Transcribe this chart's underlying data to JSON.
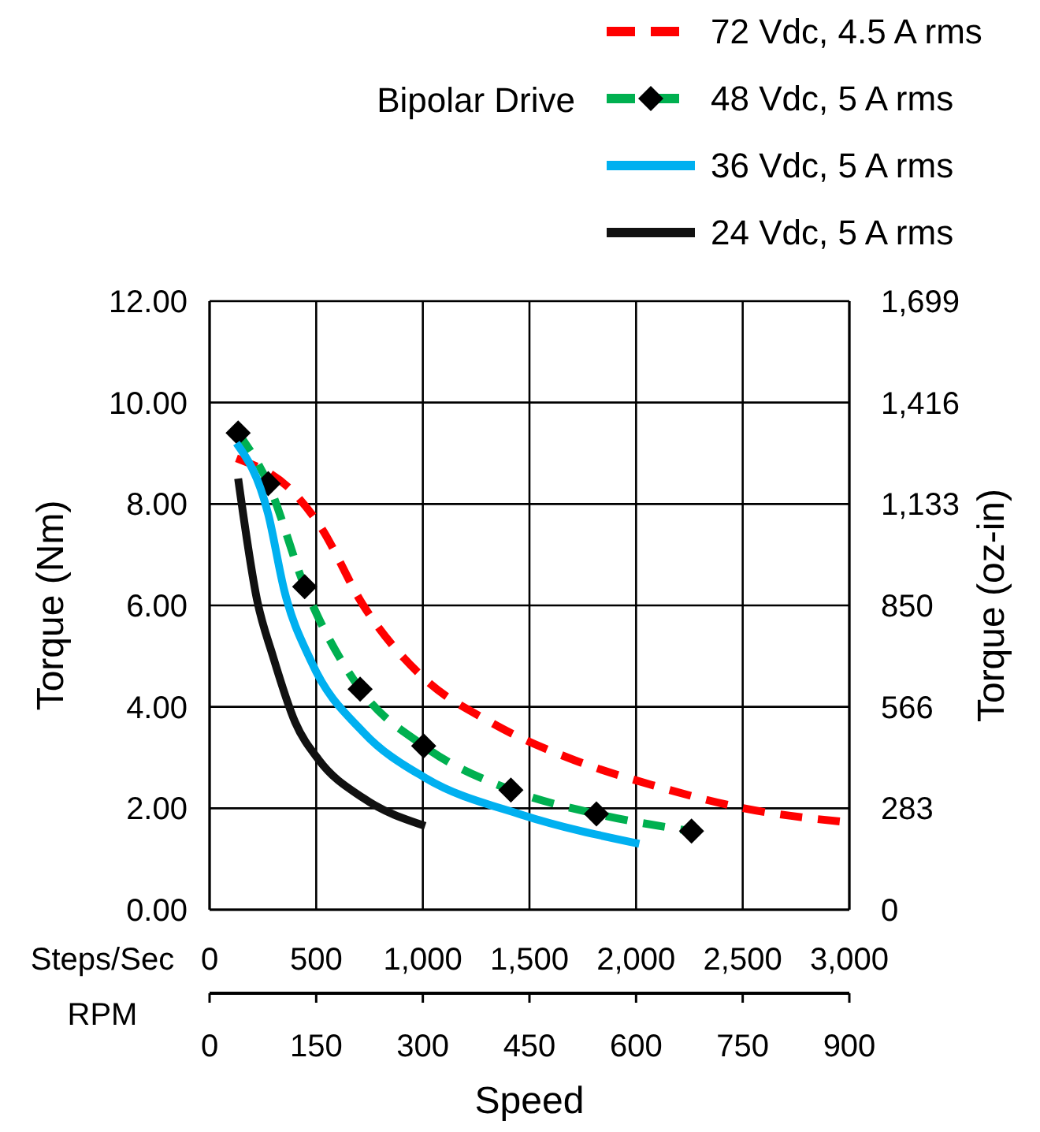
{
  "chart_data": {
    "type": "line",
    "subtitle": "Bipolar Drive",
    "xlabel": "Speed",
    "ylabel": "Torque (Nm)",
    "y2label": "Torque (oz-in)",
    "x2label": "RPM",
    "annotations": [
      "Steps/Sec"
    ],
    "xlim": [
      0,
      3000
    ],
    "xticks": [
      0,
      500,
      {
        "value": 1000,
        "label": "1,000"
      },
      {
        "value": 1500,
        "label": "1,500"
      },
      {
        "value": 2000,
        "label": "2,000"
      },
      {
        "value": 2500,
        "label": "2,500"
      },
      {
        "value": 3000,
        "label": "3,000"
      }
    ],
    "x2lim": [
      0,
      900
    ],
    "x2ticks": [
      0,
      150,
      300,
      450,
      600,
      750,
      900
    ],
    "ylim": [
      0,
      12
    ],
    "yticks": [
      {
        "value": 0,
        "label": "0.00"
      },
      {
        "value": 2,
        "label": "2.00"
      },
      {
        "value": 4,
        "label": "4.00"
      },
      {
        "value": 6,
        "label": "6.00"
      },
      {
        "value": 8,
        "label": "8.00"
      },
      {
        "value": 10,
        "label": "10.00"
      },
      {
        "value": 12,
        "label": "12.00"
      }
    ],
    "y2lim": [
      0,
      1699
    ],
    "y2ticks": [
      0,
      283,
      566,
      850,
      {
        "value": 1133,
        "label": "1,133"
      },
      {
        "value": 1416,
        "label": "1,416"
      },
      {
        "value": 1699,
        "label": "1,699"
      }
    ],
    "grid": true,
    "legend": "top right",
    "series": [
      {
        "name": "72 Vdc, 4.5 A rms",
        "color": "#ff0000",
        "line_style": "dashed",
        "marker": "none",
        "x": [
          126,
          400,
          513,
          721,
          996,
          1316,
          1710,
          2082,
          2506,
          3000
        ],
        "values": [
          8.9,
          8.2,
          7.6,
          6.0,
          4.6,
          3.7,
          2.95,
          2.45,
          2.0,
          1.72
        ]
      },
      {
        "name": "48 Vdc, 5 A rms",
        "color": "#00b050",
        "line_style": "dashed",
        "marker": "diamond",
        "x": [
          134,
          275,
          446,
          706,
          1004,
          1413,
          1814,
          2260
        ],
        "values": [
          9.4,
          8.4,
          6.37,
          4.35,
          3.23,
          2.36,
          1.89,
          1.55
        ]
      },
      {
        "name": "36 Vdc, 5 A rms",
        "color": "#00b0f0",
        "line_style": "solid",
        "marker": "none",
        "x": [
          126,
          275,
          350,
          476,
          721,
          1011,
          1465,
          2015
        ],
        "values": [
          9.2,
          7.8,
          6.3,
          4.9,
          3.5,
          2.6,
          1.87,
          1.3
        ]
      },
      {
        "name": "24 Vdc, 5 A rms",
        "color": "#111111",
        "line_style": "solid",
        "marker": "none",
        "x": [
          134,
          223,
          297,
          401,
          513,
          721,
          1011
        ],
        "values": [
          8.5,
          6.1,
          5.0,
          3.7,
          2.95,
          2.2,
          1.65
        ]
      }
    ]
  }
}
